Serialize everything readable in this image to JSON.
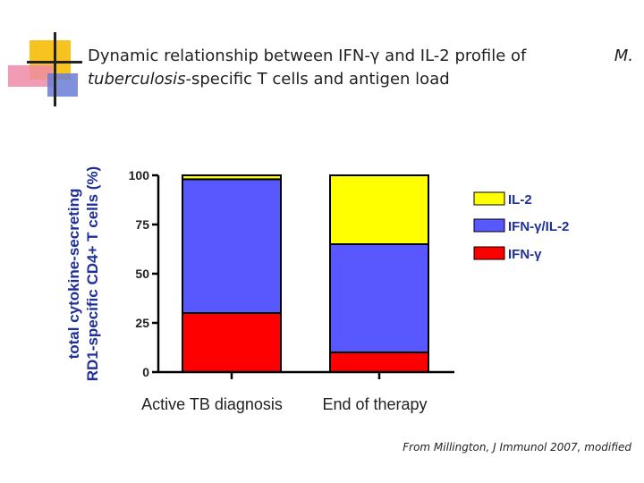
{
  "slide": {
    "title_line1": "Dynamic relationship between IFN-γ and IL-2 profile of",
    "title_organism_abbrev": "M.",
    "title_organism_species": "tuberculosis",
    "title_line2_rest": "-specific T cells and antigen load",
    "citation": "From Millington, J Immunol 2007,  modified"
  },
  "chart_data": {
    "type": "bar",
    "stacked": true,
    "title": "",
    "xlabel": "",
    "ylabel_line1": "total cytokine-secreting",
    "ylabel_line2": "RD1-specific CD4+ T cells (%)",
    "ylim": [
      0,
      100
    ],
    "yticks": [
      "0",
      "25",
      "50",
      "75",
      "100"
    ],
    "categories": [
      "Active TB diagnosis",
      "End of therapy"
    ],
    "series": [
      {
        "name": "IFN-γ",
        "values": [
          30,
          10
        ],
        "color": "#ff0000"
      },
      {
        "name": "IFN-γ/IL-2",
        "values": [
          68,
          55
        ],
        "color": "#5858ff"
      },
      {
        "name": "IL-2",
        "values": [
          2,
          35
        ],
        "color": "#ffff00"
      }
    ],
    "legend_order": [
      "IL-2",
      "IFN-γ/IL-2",
      "IFN-γ"
    ],
    "legend_position": "right"
  }
}
